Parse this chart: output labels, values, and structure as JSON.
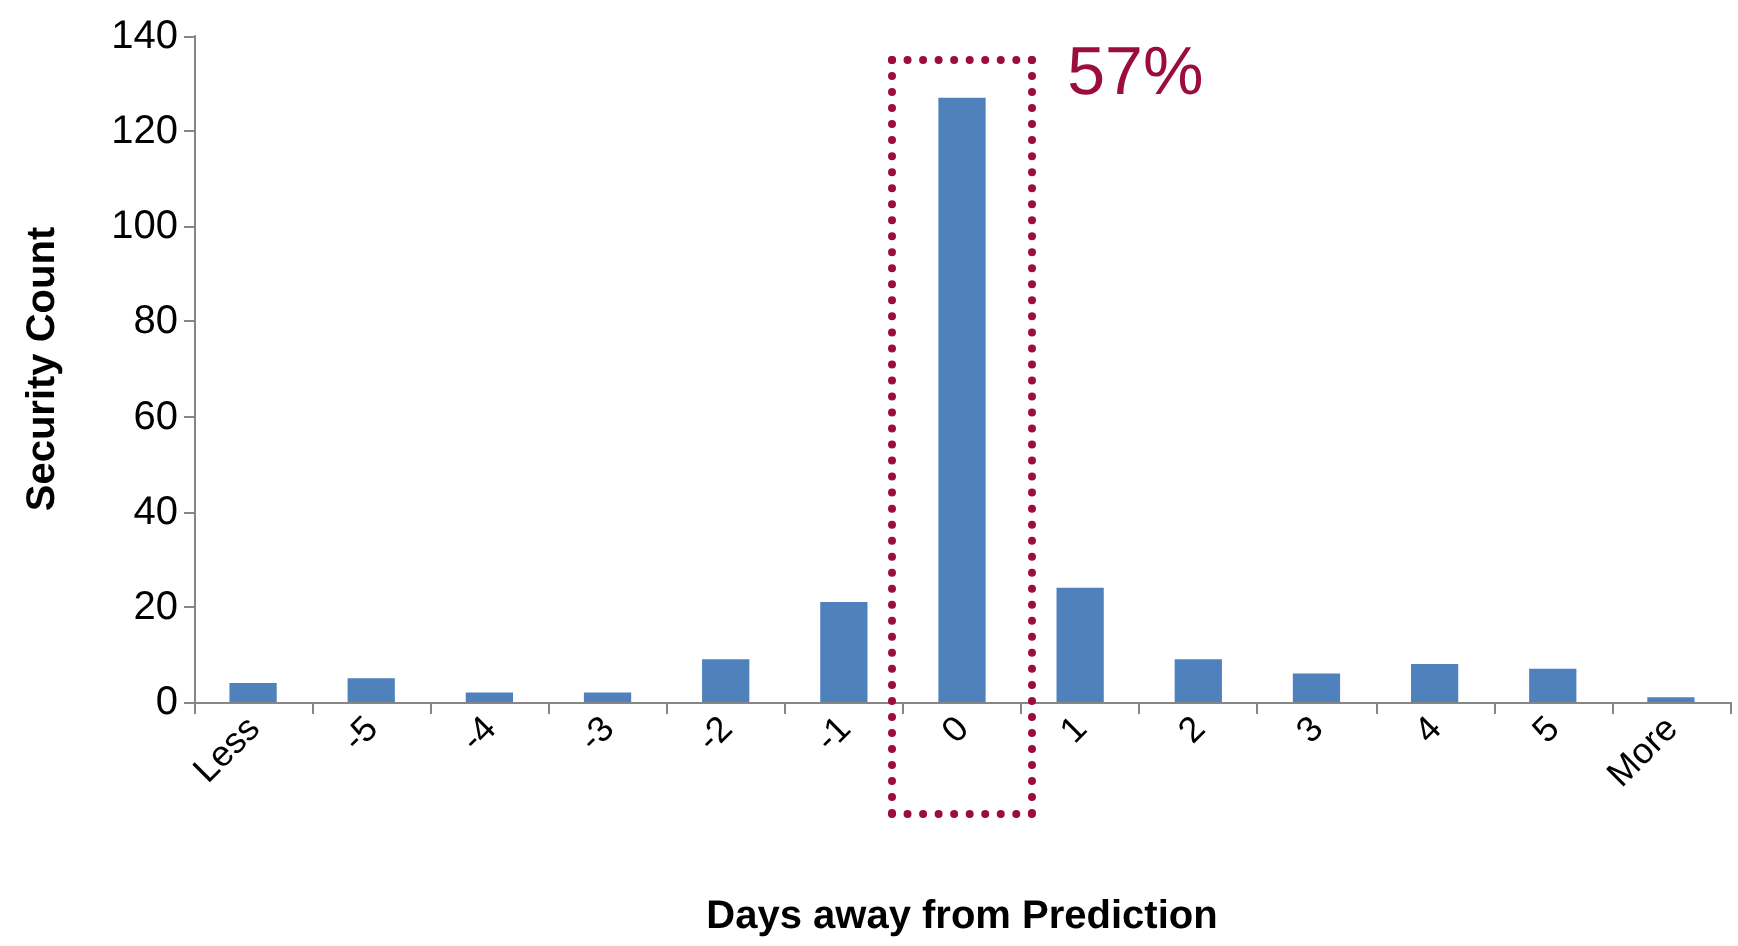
{
  "chart_data": {
    "type": "bar",
    "xlabel": "Days away from Prediction",
    "ylabel": "Security Count",
    "categories": [
      "Less",
      "-5",
      "-4",
      "-3",
      "-2",
      "-1",
      "0",
      "1",
      "2",
      "3",
      "4",
      "5",
      "More"
    ],
    "values": [
      4,
      5,
      2,
      2,
      9,
      21,
      127,
      24,
      9,
      6,
      8,
      7,
      1
    ],
    "color": "#4f81bd",
    "ylim": [
      0,
      140
    ],
    "yticks": [
      0,
      20,
      40,
      60,
      80,
      100,
      120,
      140
    ],
    "grid": false,
    "annotations": [
      {
        "text": "57%",
        "x": "0",
        "y": 127
      }
    ]
  }
}
